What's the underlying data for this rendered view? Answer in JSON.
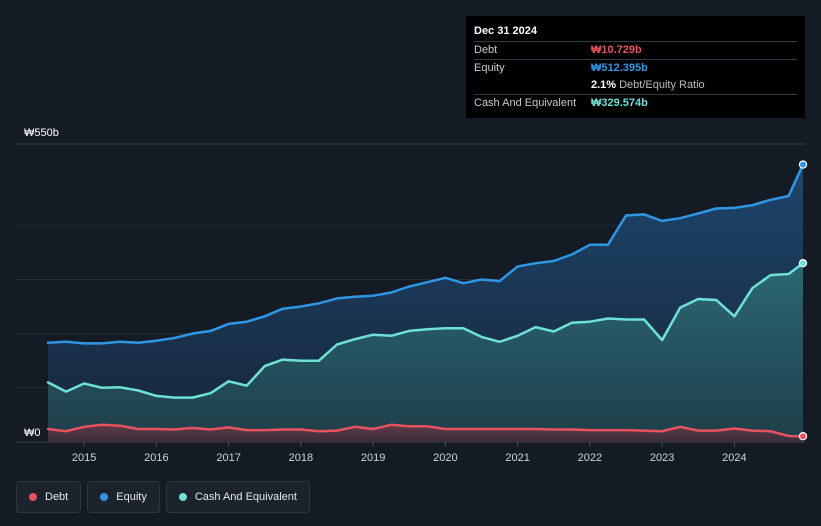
{
  "tooltip": {
    "date": "Dec 31 2024",
    "debt_label": "Debt",
    "debt_value": "₩10.729b",
    "equity_label": "Equity",
    "equity_value": "₩512.395b",
    "ratio_value": "2.1%",
    "ratio_label": "Debt/Equity Ratio",
    "cash_label": "Cash And Equivalent",
    "cash_value": "₩329.574b"
  },
  "legend": {
    "debt": "Debt",
    "equity": "Equity",
    "cash": "Cash And Equivalent"
  },
  "colors": {
    "debt": "#e8525f",
    "equity": "#2f96e6",
    "cash": "#6fe0d8",
    "background": "#151b24"
  },
  "chart_data": {
    "type": "area",
    "title": "",
    "xlabel": "",
    "ylabel": "",
    "y_top_label": "₩550b",
    "y_bottom_label": "₩0",
    "ylim": [
      0,
      550
    ],
    "xlim": [
      2014.5,
      2025.0
    ],
    "x_ticks": [
      "2015",
      "2016",
      "2017",
      "2018",
      "2019",
      "2020",
      "2021",
      "2022",
      "2023",
      "2024"
    ],
    "x_tick_values": [
      2015,
      2016,
      2017,
      2018,
      2019,
      2020,
      2021,
      2022,
      2023,
      2024
    ],
    "series": [
      {
        "name": "Equity",
        "x": [
          2014.5,
          2014.75,
          2015.0,
          2015.25,
          2015.5,
          2015.75,
          2016.0,
          2016.25,
          2016.5,
          2016.75,
          2017.0,
          2017.25,
          2017.5,
          2017.75,
          2018.0,
          2018.25,
          2018.5,
          2018.75,
          2019.0,
          2019.25,
          2019.5,
          2019.75,
          2020.0,
          2020.25,
          2020.5,
          2020.75,
          2021.0,
          2021.25,
          2021.5,
          2021.75,
          2022.0,
          2022.25,
          2022.5,
          2022.75,
          2023.0,
          2023.25,
          2023.5,
          2023.75,
          2024.0,
          2024.25,
          2024.5,
          2024.75,
          2024.95
        ],
        "values": [
          183,
          185,
          182,
          182,
          185,
          183,
          187,
          192,
          200,
          205,
          218,
          222,
          232,
          246,
          250,
          256,
          265,
          268,
          270,
          276,
          287,
          295,
          303,
          293,
          300,
          297,
          324,
          330,
          334,
          346,
          364,
          364,
          418,
          420,
          408,
          413,
          422,
          431,
          432,
          437,
          447,
          454,
          512
        ]
      },
      {
        "name": "Cash And Equivalent",
        "x": [
          2014.5,
          2014.75,
          2015.0,
          2015.25,
          2015.5,
          2015.75,
          2016.0,
          2016.25,
          2016.5,
          2016.75,
          2017.0,
          2017.25,
          2017.5,
          2017.75,
          2018.0,
          2018.25,
          2018.5,
          2018.75,
          2019.0,
          2019.25,
          2019.5,
          2019.75,
          2020.0,
          2020.25,
          2020.5,
          2020.75,
          2021.0,
          2021.25,
          2021.5,
          2021.75,
          2022.0,
          2022.25,
          2022.5,
          2022.75,
          2023.0,
          2023.25,
          2023.5,
          2023.75,
          2024.0,
          2024.25,
          2024.5,
          2024.75,
          2024.95
        ],
        "values": [
          110,
          93,
          108,
          100,
          101,
          95,
          85,
          82,
          82,
          90,
          112,
          104,
          140,
          152,
          150,
          150,
          180,
          190,
          198,
          196,
          205,
          208,
          210,
          210,
          194,
          185,
          196,
          212,
          204,
          220,
          222,
          228,
          226,
          226,
          188,
          248,
          264,
          262,
          232,
          284,
          308,
          310,
          330
        ]
      },
      {
        "name": "Debt",
        "x": [
          2014.5,
          2014.75,
          2015.0,
          2015.25,
          2015.5,
          2015.75,
          2016.0,
          2016.25,
          2016.5,
          2016.75,
          2017.0,
          2017.25,
          2017.5,
          2017.75,
          2018.0,
          2018.25,
          2018.5,
          2018.75,
          2019.0,
          2019.25,
          2019.5,
          2019.75,
          2020.0,
          2020.25,
          2020.5,
          2020.75,
          2021.0,
          2021.25,
          2021.5,
          2021.75,
          2022.0,
          2022.25,
          2022.5,
          2022.75,
          2023.0,
          2023.25,
          2023.5,
          2023.75,
          2024.0,
          2024.25,
          2024.5,
          2024.75,
          2024.95
        ],
        "values": [
          24,
          20,
          28,
          32,
          30,
          24,
          24,
          23,
          26,
          23,
          27,
          22,
          22,
          23,
          23,
          20,
          21,
          28,
          24,
          32,
          29,
          29,
          24,
          24,
          24,
          24,
          24,
          24,
          23,
          23,
          22,
          22,
          22,
          21,
          20,
          28,
          21,
          21,
          25,
          21,
          20,
          11,
          10.7
        ]
      }
    ]
  }
}
